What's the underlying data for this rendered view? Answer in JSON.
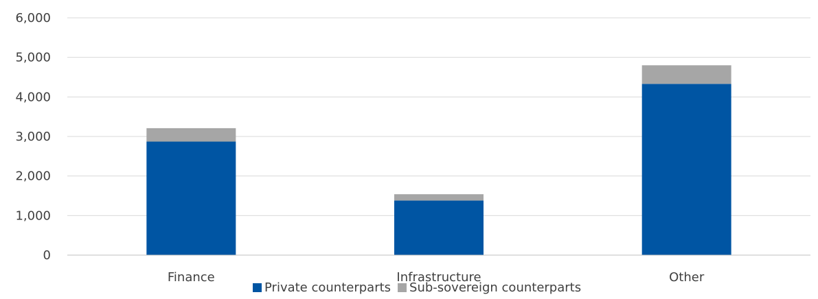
{
  "chart_data": {
    "type": "bar",
    "stacked": true,
    "categories": [
      "Finance",
      "Infrastructure",
      "Other"
    ],
    "series": [
      {
        "name": "Private counterparts",
        "values": [
          2870,
          1380,
          4330
        ],
        "color": "#0055A3"
      },
      {
        "name": "Sub-sovereign counterparts",
        "values": [
          340,
          160,
          470
        ],
        "color": "#A6A6A6"
      }
    ],
    "ylim": [
      0,
      6000
    ],
    "yticks": [
      "0",
      "1,000",
      "2,000",
      "3,000",
      "4,000",
      "5,000",
      "6,000"
    ],
    "ytick_values": [
      0,
      1000,
      2000,
      3000,
      4000,
      5000,
      6000
    ],
    "grid": true,
    "legend_position": "bottom",
    "gridline_color": "#D9D9D9",
    "axis_color": "#BFBFBF",
    "title": "",
    "xlabel": "",
    "ylabel": ""
  }
}
